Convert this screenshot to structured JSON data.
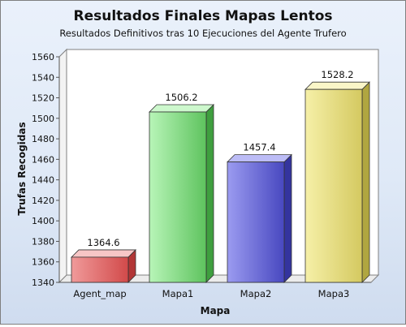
{
  "chart_data": {
    "type": "bar",
    "title": "Resultados Finales Mapas Lentos",
    "subtitle": "Resultados Definitivos tras 10 Ejecuciones del Agente Trufero",
    "xlabel": "Mapa",
    "ylabel": "Trufas Recogidas",
    "categories": [
      "Agent_map",
      "Mapa1",
      "Mapa2",
      "Mapa3"
    ],
    "values": [
      1364.6,
      1506.2,
      1457.4,
      1528.2
    ],
    "value_labels": [
      "1364.6",
      "1506.2",
      "1457.4",
      "1528.2"
    ],
    "ylim": [
      1340,
      1560
    ],
    "y_ticks": [
      1340,
      1360,
      1380,
      1400,
      1420,
      1440,
      1460,
      1480,
      1500,
      1520,
      1540,
      1560
    ],
    "grid": false,
    "legend": "none",
    "bar_colors": [
      {
        "light": "#f09a9a",
        "dark": "#d24a4a",
        "side": "#b23636",
        "top": "#f7c6c6"
      },
      {
        "light": "#b8f5b8",
        "dark": "#5ec35e",
        "side": "#3f9f3f",
        "top": "#cdf8cd"
      },
      {
        "light": "#9b9bf0",
        "dark": "#4848c0",
        "side": "#34349e",
        "top": "#bcbcf6"
      },
      {
        "light": "#f6f0a8",
        "dark": "#d4c960",
        "side": "#b0a640",
        "top": "#faf6c8"
      }
    ]
  }
}
